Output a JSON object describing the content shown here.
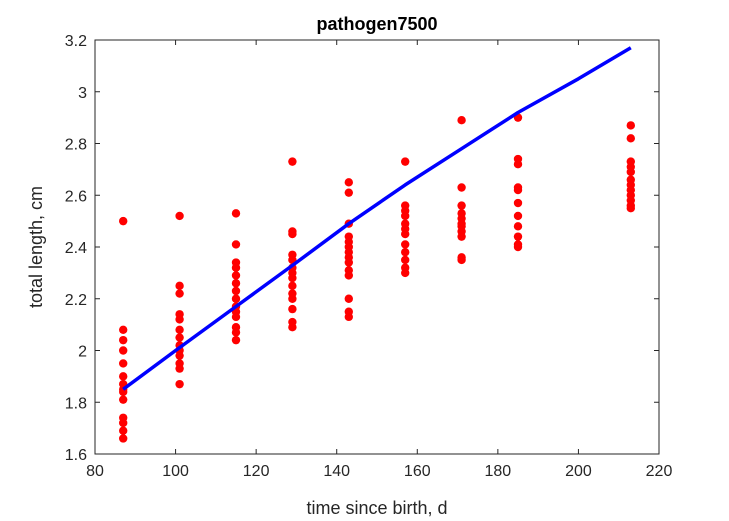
{
  "chart_data": {
    "type": "scatter",
    "title": "pathogen7500",
    "xlabel": "time since birth, d",
    "ylabel": "total length, cm",
    "xlim": [
      80,
      220
    ],
    "ylim": [
      1.6,
      3.2
    ],
    "xticks": [
      80,
      100,
      120,
      140,
      160,
      180,
      200,
      220
    ],
    "yticks": [
      1.6,
      1.8,
      2,
      2.2,
      2.4,
      2.6,
      2.8,
      3,
      3.2
    ],
    "xtick_labels": [
      "80",
      "100",
      "120",
      "140",
      "160",
      "180",
      "200",
      "220"
    ],
    "ytick_labels": [
      "1.6",
      "1.8",
      "2",
      "2.2",
      "2.4",
      "2.6",
      "2.8",
      "3",
      "3.2"
    ],
    "grid": false,
    "series": [
      {
        "kind": "scatter",
        "color": "#ff0000",
        "points": [
          [
            87,
            2.5
          ],
          [
            87,
            2.08
          ],
          [
            87,
            2.04
          ],
          [
            87,
            2.0
          ],
          [
            87,
            1.95
          ],
          [
            87,
            1.9
          ],
          [
            87,
            1.87
          ],
          [
            87,
            1.85
          ],
          [
            87,
            1.84
          ],
          [
            87,
            1.81
          ],
          [
            87,
            1.74
          ],
          [
            87,
            1.72
          ],
          [
            87,
            1.69
          ],
          [
            87,
            1.66
          ],
          [
            101,
            2.52
          ],
          [
            101,
            2.25
          ],
          [
            101,
            2.22
          ],
          [
            101,
            2.14
          ],
          [
            101,
            2.12
          ],
          [
            101,
            2.08
          ],
          [
            101,
            2.05
          ],
          [
            101,
            2.02
          ],
          [
            101,
            2.0
          ],
          [
            101,
            1.98
          ],
          [
            101,
            1.95
          ],
          [
            101,
            1.93
          ],
          [
            101,
            1.87
          ],
          [
            115,
            2.53
          ],
          [
            115,
            2.41
          ],
          [
            115,
            2.34
          ],
          [
            115,
            2.32
          ],
          [
            115,
            2.29
          ],
          [
            115,
            2.26
          ],
          [
            115,
            2.23
          ],
          [
            115,
            2.2
          ],
          [
            115,
            2.17
          ],
          [
            115,
            2.15
          ],
          [
            115,
            2.13
          ],
          [
            115,
            2.09
          ],
          [
            115,
            2.07
          ],
          [
            115,
            2.04
          ],
          [
            129,
            2.73
          ],
          [
            129,
            2.46
          ],
          [
            129,
            2.45
          ],
          [
            129,
            2.37
          ],
          [
            129,
            2.35
          ],
          [
            129,
            2.32
          ],
          [
            129,
            2.3
          ],
          [
            129,
            2.28
          ],
          [
            129,
            2.25
          ],
          [
            129,
            2.22
          ],
          [
            129,
            2.2
          ],
          [
            129,
            2.16
          ],
          [
            129,
            2.11
          ],
          [
            129,
            2.09
          ],
          [
            143,
            2.65
          ],
          [
            143,
            2.61
          ],
          [
            143,
            2.49
          ],
          [
            143,
            2.44
          ],
          [
            143,
            2.42
          ],
          [
            143,
            2.4
          ],
          [
            143,
            2.38
          ],
          [
            143,
            2.36
          ],
          [
            143,
            2.34
          ],
          [
            143,
            2.31
          ],
          [
            143,
            2.29
          ],
          [
            143,
            2.2
          ],
          [
            143,
            2.15
          ],
          [
            143,
            2.13
          ],
          [
            157,
            2.73
          ],
          [
            157,
            2.56
          ],
          [
            157,
            2.54
          ],
          [
            157,
            2.52
          ],
          [
            157,
            2.49
          ],
          [
            157,
            2.47
          ],
          [
            157,
            2.45
          ],
          [
            157,
            2.41
          ],
          [
            157,
            2.38
          ],
          [
            157,
            2.35
          ],
          [
            157,
            2.32
          ],
          [
            157,
            2.3
          ],
          [
            171,
            2.89
          ],
          [
            171,
            2.63
          ],
          [
            171,
            2.56
          ],
          [
            171,
            2.53
          ],
          [
            171,
            2.51
          ],
          [
            171,
            2.49
          ],
          [
            171,
            2.48
          ],
          [
            171,
            2.46
          ],
          [
            171,
            2.44
          ],
          [
            171,
            2.36
          ],
          [
            171,
            2.35
          ],
          [
            185,
            2.9
          ],
          [
            185,
            2.74
          ],
          [
            185,
            2.72
          ],
          [
            185,
            2.63
          ],
          [
            185,
            2.62
          ],
          [
            185,
            2.57
          ],
          [
            185,
            2.52
          ],
          [
            185,
            2.48
          ],
          [
            185,
            2.44
          ],
          [
            185,
            2.41
          ],
          [
            185,
            2.4
          ],
          [
            213,
            2.87
          ],
          [
            213,
            2.82
          ],
          [
            213,
            2.73
          ],
          [
            213,
            2.71
          ],
          [
            213,
            2.69
          ],
          [
            213,
            2.66
          ],
          [
            213,
            2.64
          ],
          [
            213,
            2.62
          ],
          [
            213,
            2.6
          ],
          [
            213,
            2.58
          ],
          [
            213,
            2.56
          ],
          [
            213,
            2.55
          ]
        ]
      },
      {
        "kind": "line",
        "color": "#0000ff",
        "points": [
          [
            87,
            1.85
          ],
          [
            100,
            2.0
          ],
          [
            115,
            2.17
          ],
          [
            130,
            2.34
          ],
          [
            143,
            2.49
          ],
          [
            157,
            2.64
          ],
          [
            171,
            2.78
          ],
          [
            185,
            2.92
          ],
          [
            200,
            3.05
          ],
          [
            213,
            3.17
          ]
        ]
      }
    ]
  }
}
